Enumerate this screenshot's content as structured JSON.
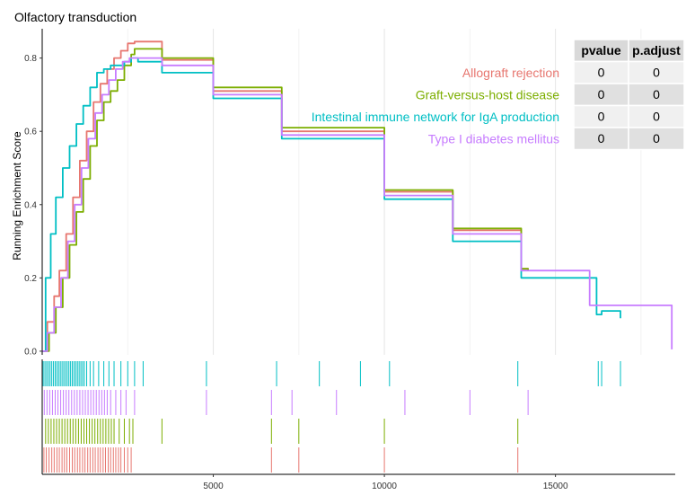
{
  "chart_data": {
    "type": "line",
    "title": "Olfactory transduction",
    "xlabel": "",
    "ylabel": "Running Enrichment Score",
    "xlim": [
      0,
      18500
    ],
    "ylim": [
      -0.01,
      0.88
    ],
    "x_ticks": [
      "5000",
      "10000",
      "15000"
    ],
    "x_tick_values": [
      5000,
      10000,
      15000
    ],
    "y_ticks": [
      "0.0",
      "0.2",
      "0.4",
      "0.6",
      "0.8"
    ],
    "y_tick_values": [
      0.0,
      0.2,
      0.4,
      0.6,
      0.8
    ],
    "grid": true,
    "series": [
      {
        "name": "Allograft rejection",
        "color": "#E7766F",
        "points": [
          [
            0,
            0
          ],
          [
            150,
            0.08
          ],
          [
            350,
            0.15
          ],
          [
            500,
            0.22
          ],
          [
            700,
            0.32
          ],
          [
            900,
            0.42
          ],
          [
            1100,
            0.52
          ],
          [
            1300,
            0.6
          ],
          [
            1500,
            0.68
          ],
          [
            1700,
            0.73
          ],
          [
            1900,
            0.77
          ],
          [
            2100,
            0.8
          ],
          [
            2300,
            0.82
          ],
          [
            2500,
            0.84
          ],
          [
            2700,
            0.845
          ],
          [
            3500,
            0.795
          ],
          [
            5000,
            0.71
          ],
          [
            7000,
            0.6
          ],
          [
            10000,
            0.435
          ],
          [
            12000,
            0.33
          ],
          [
            14000,
            0.225
          ],
          [
            14200,
            0.22
          ]
        ],
        "hits": [
          50,
          120,
          200,
          280,
          350,
          430,
          500,
          580,
          650,
          720,
          800,
          880,
          950,
          1030,
          1100,
          1180,
          1250,
          1330,
          1400,
          1480,
          1550,
          1630,
          1700,
          1780,
          1850,
          1930,
          2000,
          2080,
          2150,
          2230,
          2300,
          2400,
          2500,
          2600,
          6700,
          7500,
          10000,
          13900
        ]
      },
      {
        "name": "Graft-versus-host disease",
        "color": "#7CAE00",
        "points": [
          [
            0,
            0
          ],
          [
            200,
            0.05
          ],
          [
            400,
            0.12
          ],
          [
            600,
            0.2
          ],
          [
            800,
            0.29
          ],
          [
            1000,
            0.38
          ],
          [
            1200,
            0.47
          ],
          [
            1400,
            0.56
          ],
          [
            1600,
            0.63
          ],
          [
            1800,
            0.68
          ],
          [
            2000,
            0.71
          ],
          [
            2200,
            0.74
          ],
          [
            2400,
            0.78
          ],
          [
            2600,
            0.81
          ],
          [
            2700,
            0.825
          ],
          [
            3500,
            0.8
          ],
          [
            5000,
            0.72
          ],
          [
            7000,
            0.61
          ],
          [
            10000,
            0.44
          ],
          [
            12000,
            0.335
          ],
          [
            14000,
            0.225
          ],
          [
            14200,
            0.22
          ]
        ],
        "hits": [
          100,
          180,
          260,
          340,
          420,
          500,
          580,
          660,
          740,
          820,
          900,
          980,
          1060,
          1140,
          1220,
          1300,
          1380,
          1460,
          1540,
          1620,
          1700,
          1780,
          1860,
          1940,
          2020,
          2100,
          2250,
          2400,
          2550,
          2650,
          3500,
          6700,
          7500,
          10000,
          13900
        ]
      },
      {
        "name": "Intestinal immune network for IgA production",
        "color": "#00BFC4",
        "points": [
          [
            0,
            0
          ],
          [
            100,
            0.2
          ],
          [
            250,
            0.32
          ],
          [
            400,
            0.42
          ],
          [
            600,
            0.5
          ],
          [
            800,
            0.56
          ],
          [
            1000,
            0.62
          ],
          [
            1200,
            0.67
          ],
          [
            1400,
            0.72
          ],
          [
            1600,
            0.76
          ],
          [
            1800,
            0.77
          ],
          [
            2000,
            0.78
          ],
          [
            2200,
            0.78
          ],
          [
            2400,
            0.79
          ],
          [
            2600,
            0.8
          ],
          [
            2800,
            0.79
          ],
          [
            3500,
            0.76
          ],
          [
            5000,
            0.69
          ],
          [
            7000,
            0.58
          ],
          [
            10000,
            0.415
          ],
          [
            12000,
            0.3
          ],
          [
            14000,
            0.2
          ],
          [
            16200,
            0.1
          ],
          [
            16350,
            0.11
          ],
          [
            16900,
            0.09
          ]
        ],
        "hits": [
          30,
          80,
          130,
          180,
          230,
          280,
          330,
          380,
          430,
          480,
          530,
          580,
          630,
          680,
          730,
          780,
          830,
          880,
          930,
          980,
          1030,
          1080,
          1130,
          1180,
          1230,
          1300,
          1400,
          1500,
          1650,
          1800,
          1950,
          2100,
          2300,
          2500,
          2700,
          2950,
          4800,
          6850,
          8100,
          9300,
          10150,
          13900,
          16250,
          16350,
          16900
        ]
      },
      {
        "name": "Type I diabetes mellitus",
        "color": "#C77CFF",
        "points": [
          [
            0,
            0
          ],
          [
            150,
            0.05
          ],
          [
            350,
            0.12
          ],
          [
            550,
            0.2
          ],
          [
            750,
            0.3
          ],
          [
            950,
            0.4
          ],
          [
            1150,
            0.5
          ],
          [
            1350,
            0.58
          ],
          [
            1550,
            0.65
          ],
          [
            1750,
            0.7
          ],
          [
            1950,
            0.74
          ],
          [
            2150,
            0.77
          ],
          [
            2350,
            0.79
          ],
          [
            2550,
            0.8
          ],
          [
            2750,
            0.8
          ],
          [
            3500,
            0.78
          ],
          [
            5000,
            0.7
          ],
          [
            7000,
            0.59
          ],
          [
            10000,
            0.425
          ],
          [
            12000,
            0.32
          ],
          [
            14000,
            0.22
          ],
          [
            16000,
            0.125
          ],
          [
            18400,
            0.005
          ]
        ],
        "hits": [
          60,
          140,
          220,
          300,
          380,
          460,
          540,
          620,
          700,
          780,
          860,
          940,
          1020,
          1100,
          1180,
          1260,
          1340,
          1420,
          1500,
          1580,
          1660,
          1740,
          1820,
          1900,
          2000,
          2150,
          2300,
          2450,
          2700,
          4800,
          6700,
          7300,
          8600,
          10600,
          12500,
          14200
        ]
      }
    ],
    "legend_position": "top-right",
    "table": {
      "headers": [
        "pvalue",
        "p.adjust"
      ],
      "rows": [
        [
          "0",
          "0"
        ],
        [
          "0",
          "0"
        ],
        [
          "0",
          "0"
        ],
        [
          "0",
          "0"
        ]
      ]
    }
  }
}
